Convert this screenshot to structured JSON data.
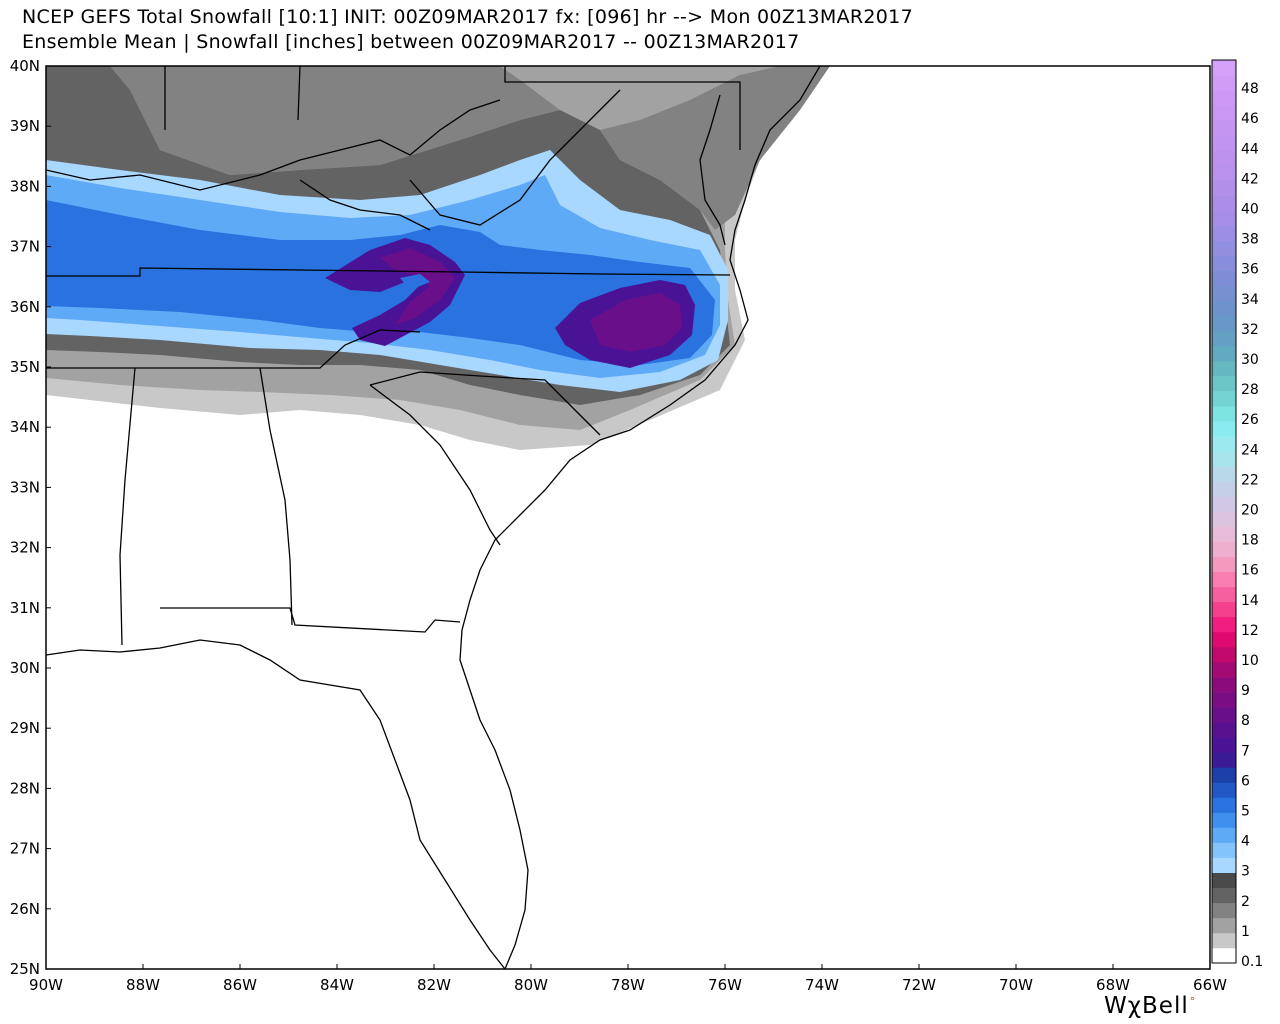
{
  "header": {
    "line1": "NCEP GEFS Total Snowfall [10:1] INIT: 00Z09MAR2017 fx: [096] hr --> Mon 00Z13MAR2017",
    "line2": "Ensemble Mean | Snowfall [inches] between 00Z09MAR2017 -- 00Z13MAR2017"
  },
  "map": {
    "lat_labels": [
      "40N",
      "39N",
      "38N",
      "37N",
      "36N",
      "35N",
      "34N",
      "33N",
      "32N",
      "31N",
      "30N",
      "29N",
      "28N",
      "27N",
      "26N",
      "25N"
    ],
    "lon_labels": [
      "90W",
      "88W",
      "86W",
      "84W",
      "82W",
      "80W",
      "78W",
      "76W",
      "74W",
      "72W",
      "70W",
      "68W",
      "66W"
    ],
    "extent": {
      "lon_min": -90,
      "lon_max": -66,
      "lat_min": 25,
      "lat_max": 40
    }
  },
  "colorbar": {
    "unit": "inches",
    "bins": [
      {
        "label": "0.1",
        "color": "#ffffff"
      },
      {
        "label": "",
        "color": "#c8c8c8"
      },
      {
        "label": "1",
        "color": "#a2a2a2"
      },
      {
        "label": "",
        "color": "#828282"
      },
      {
        "label": "2",
        "color": "#636363"
      },
      {
        "label": "",
        "color": "#4a4a4a"
      },
      {
        "label": "3",
        "color": "#a8d8ff"
      },
      {
        "label": "",
        "color": "#84c4fc"
      },
      {
        "label": "4",
        "color": "#5eaaf6"
      },
      {
        "label": "",
        "color": "#3f8fee"
      },
      {
        "label": "5",
        "color": "#2a72e0"
      },
      {
        "label": "",
        "color": "#2158c6"
      },
      {
        "label": "6",
        "color": "#1c3fa8"
      },
      {
        "label": "",
        "color": "#3b1a96"
      },
      {
        "label": "7",
        "color": "#4a1396"
      },
      {
        "label": "",
        "color": "#5a1190"
      },
      {
        "label": "8",
        "color": "#6a0f8a"
      },
      {
        "label": "",
        "color": "#7a0c84"
      },
      {
        "label": "9",
        "color": "#8c0b7c"
      },
      {
        "label": "",
        "color": "#a30a74"
      },
      {
        "label": "10",
        "color": "#c20a6e"
      },
      {
        "label": "",
        "color": "#de0a70"
      },
      {
        "label": "12",
        "color": "#f01e7e"
      },
      {
        "label": "",
        "color": "#f5408e"
      },
      {
        "label": "14",
        "color": "#f7609e"
      },
      {
        "label": "",
        "color": "#f77eae"
      },
      {
        "label": "16",
        "color": "#f49abe"
      },
      {
        "label": "",
        "color": "#eeaece"
      },
      {
        "label": "18",
        "color": "#e8bcd8"
      },
      {
        "label": "",
        "color": "#dcc4e0"
      },
      {
        "label": "20",
        "color": "#d0c8e4"
      },
      {
        "label": "",
        "color": "#c4d0e8"
      },
      {
        "label": "22",
        "color": "#b8dae8"
      },
      {
        "label": "",
        "color": "#a8e4ec"
      },
      {
        "label": "24",
        "color": "#9ceaf0"
      },
      {
        "label": "",
        "color": "#8aecee"
      },
      {
        "label": "26",
        "color": "#7ee4e2"
      },
      {
        "label": "",
        "color": "#74d4d4"
      },
      {
        "label": "28",
        "color": "#6cc6c8"
      },
      {
        "label": "",
        "color": "#66b8c0"
      },
      {
        "label": "30",
        "color": "#62aac0"
      },
      {
        "label": "",
        "color": "#64a0c4"
      },
      {
        "label": "32",
        "color": "#6898c8"
      },
      {
        "label": "",
        "color": "#6e92cc"
      },
      {
        "label": "34",
        "color": "#7690d0"
      },
      {
        "label": "",
        "color": "#7e8ed6"
      },
      {
        "label": "36",
        "color": "#888edc"
      },
      {
        "label": "",
        "color": "#928ee0"
      },
      {
        "label": "38",
        "color": "#9c8ee4"
      },
      {
        "label": "",
        "color": "#a48ee6"
      },
      {
        "label": "40",
        "color": "#ac8ee8"
      },
      {
        "label": "",
        "color": "#b290ea"
      },
      {
        "label": "42",
        "color": "#b892ec"
      },
      {
        "label": "",
        "color": "#bc92ee"
      },
      {
        "label": "44",
        "color": "#c094f0"
      },
      {
        "label": "",
        "color": "#c496f2"
      },
      {
        "label": "46",
        "color": "#c898f4"
      },
      {
        "label": "",
        "color": "#cc9af4"
      },
      {
        "label": "48",
        "color": "#d09cf6"
      },
      {
        "label": "",
        "color": "#d4a0f8"
      }
    ]
  },
  "logo": {
    "text": "WχBell",
    "dot": "°",
    "dot_color": "#e0302a"
  }
}
